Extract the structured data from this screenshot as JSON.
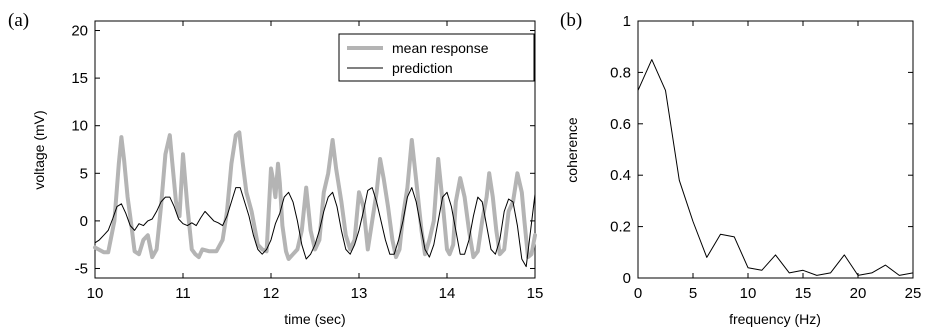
{
  "chart_data": [
    {
      "panel_label": "(a)",
      "type": "line",
      "xlabel": "time (sec)",
      "ylabel": "voltage (mV)",
      "xlim": [
        10,
        15
      ],
      "ylim": [
        -6,
        21
      ],
      "xticks": [
        10,
        11,
        12,
        13,
        14,
        15
      ],
      "yticks": [
        -5,
        0,
        5,
        10,
        15,
        20
      ],
      "grid": false,
      "legend": "top-right",
      "series": [
        {
          "name": "mean response",
          "color": "#b4b4b4",
          "x": [
            10.0,
            10.1,
            10.15,
            10.22,
            10.27,
            10.3,
            10.33,
            10.37,
            10.4,
            10.45,
            10.5,
            10.55,
            10.6,
            10.65,
            10.7,
            10.75,
            10.8,
            10.85,
            10.88,
            10.92,
            10.96,
            11.0,
            11.05,
            11.1,
            11.14,
            11.18,
            11.22,
            11.3,
            11.38,
            11.45,
            11.5,
            11.55,
            11.6,
            11.64,
            11.68,
            11.72,
            11.78,
            11.85,
            11.9,
            11.95,
            12.0,
            12.02,
            12.05,
            12.08,
            12.1,
            12.13,
            12.17,
            12.2,
            12.25,
            12.3,
            12.35,
            12.4,
            12.45,
            12.5,
            12.55,
            12.6,
            12.65,
            12.7,
            12.74,
            12.8,
            12.85,
            12.9,
            12.95,
            13.0,
            13.05,
            13.1,
            13.15,
            13.2,
            13.24,
            13.28,
            13.33,
            13.38,
            13.42,
            13.46,
            13.5,
            13.55,
            13.6,
            13.63,
            13.67,
            13.71,
            13.75,
            13.8,
            13.85,
            13.9,
            13.95,
            14.0,
            14.03,
            14.07,
            14.1,
            14.15,
            14.2,
            14.25,
            14.3,
            14.35,
            14.4,
            14.45,
            14.48,
            14.52,
            14.56,
            14.6,
            14.65,
            14.7,
            14.75,
            14.8,
            14.85,
            14.88,
            14.92,
            14.96,
            15.0
          ],
          "y": [
            -2.8,
            -3.3,
            -3.3,
            0.0,
            6.0,
            8.8,
            6.5,
            2.5,
            0.5,
            -3.2,
            -3.5,
            -2.0,
            -1.5,
            -3.8,
            -3.0,
            1.5,
            7.0,
            9.0,
            6.0,
            2.0,
            0.5,
            7.0,
            1.5,
            -3.0,
            -3.5,
            -3.8,
            -3.0,
            -3.2,
            -3.2,
            -2.0,
            1.0,
            6.0,
            9.0,
            9.3,
            6.0,
            3.0,
            1.0,
            -2.5,
            -3.0,
            -3.2,
            5.5,
            4.5,
            2.5,
            6.0,
            4.0,
            -0.5,
            -3.2,
            -4.0,
            -3.5,
            -3.0,
            -1.0,
            3.5,
            -1.0,
            -3.0,
            -2.0,
            3.0,
            5.0,
            8.5,
            5.5,
            2.0,
            -1.5,
            -3.0,
            -2.0,
            3.0,
            1.5,
            -3.0,
            0.0,
            3.0,
            6.5,
            4.5,
            1.5,
            -2.0,
            -3.8,
            -3.0,
            0.5,
            3.5,
            8.5,
            6.0,
            2.5,
            -1.0,
            -3.5,
            -2.0,
            0.0,
            6.5,
            2.0,
            -3.0,
            -3.5,
            -2.5,
            2.0,
            4.5,
            2.5,
            -1.0,
            -3.8,
            -3.2,
            0.0,
            2.5,
            5.0,
            2.5,
            -1.0,
            -3.5,
            -3.0,
            1.0,
            2.0,
            5.0,
            3.0,
            0.0,
            -3.8,
            -3.5,
            -1.5
          ]
        },
        {
          "name": "prediction",
          "color": "#000000",
          "x": [
            10.0,
            10.05,
            10.1,
            10.15,
            10.2,
            10.25,
            10.3,
            10.35,
            10.4,
            10.45,
            10.5,
            10.55,
            10.6,
            10.65,
            10.7,
            10.75,
            10.8,
            10.85,
            10.9,
            10.95,
            11.0,
            11.05,
            11.1,
            11.15,
            11.2,
            11.25,
            11.3,
            11.35,
            11.4,
            11.45,
            11.5,
            11.55,
            11.6,
            11.65,
            11.7,
            11.75,
            11.8,
            11.85,
            11.9,
            11.95,
            12.0,
            12.05,
            12.1,
            12.15,
            12.2,
            12.25,
            12.3,
            12.35,
            12.4,
            12.45,
            12.5,
            12.55,
            12.6,
            12.65,
            12.7,
            12.75,
            12.8,
            12.85,
            12.9,
            12.95,
            13.0,
            13.05,
            13.1,
            13.15,
            13.2,
            13.25,
            13.3,
            13.35,
            13.4,
            13.45,
            13.5,
            13.55,
            13.6,
            13.65,
            13.7,
            13.75,
            13.8,
            13.85,
            13.9,
            13.95,
            14.0,
            14.05,
            14.1,
            14.15,
            14.2,
            14.25,
            14.3,
            14.35,
            14.4,
            14.45,
            14.5,
            14.55,
            14.6,
            14.65,
            14.7,
            14.75,
            14.8,
            14.85,
            14.9,
            14.95,
            15.0
          ],
          "y": [
            -2.3,
            -2.0,
            -1.5,
            -1.0,
            0.2,
            1.5,
            1.8,
            0.8,
            -0.5,
            -1.0,
            -0.3,
            -0.5,
            0.0,
            0.2,
            1.0,
            2.0,
            2.5,
            2.5,
            1.5,
            0.2,
            -0.3,
            -0.5,
            -0.2,
            -0.5,
            0.3,
            1.0,
            0.5,
            0.0,
            -0.2,
            -0.5,
            0.5,
            2.0,
            3.5,
            3.5,
            2.0,
            0.5,
            -1.5,
            -3.0,
            -3.5,
            -3.0,
            -2.0,
            -0.3,
            0.8,
            2.5,
            3.0,
            2.0,
            0.0,
            -2.5,
            -4.0,
            -3.5,
            -2.5,
            -1.0,
            1.0,
            2.5,
            3.0,
            1.5,
            -1.0,
            -3.0,
            -3.5,
            -2.5,
            -1.0,
            1.0,
            3.2,
            3.5,
            2.0,
            0.0,
            -2.0,
            -3.5,
            -3.5,
            -2.0,
            0.0,
            2.5,
            3.5,
            2.0,
            -0.5,
            -3.0,
            -3.8,
            -2.5,
            0.0,
            2.5,
            3.0,
            1.5,
            -1.0,
            -3.5,
            -3.5,
            -2.0,
            0.5,
            2.5,
            2.0,
            -0.5,
            -3.0,
            -3.5,
            -2.0,
            1.0,
            2.3,
            2.0,
            -0.5,
            -4.0,
            -4.8,
            -1.0,
            2.8
          ]
        }
      ]
    },
    {
      "panel_label": "(b)",
      "type": "line",
      "xlabel": "frequency (Hz)",
      "ylabel": "coherence",
      "xlim": [
        0,
        25
      ],
      "ylim": [
        0,
        1
      ],
      "xticks": [
        0,
        5,
        10,
        15,
        20,
        25
      ],
      "yticks": [
        0,
        0.2,
        0.4,
        0.6,
        0.8,
        1
      ],
      "ytick_labels": [
        "0",
        "0.2",
        "0.4",
        "0.6",
        "0.8",
        "1"
      ],
      "grid": false,
      "series": [
        {
          "color": "#000000",
          "x": [
            0,
            1.25,
            2.5,
            3.75,
            5,
            6.25,
            7.5,
            8.75,
            10,
            11.25,
            12.5,
            13.75,
            15,
            16.25,
            17.5,
            18.75,
            20,
            21.25,
            22.5,
            23.75,
            25
          ],
          "y": [
            0.73,
            0.85,
            0.73,
            0.38,
            0.22,
            0.08,
            0.17,
            0.16,
            0.04,
            0.03,
            0.09,
            0.02,
            0.03,
            0.01,
            0.02,
            0.09,
            0.01,
            0.02,
            0.05,
            0.01,
            0.02
          ]
        }
      ]
    }
  ]
}
